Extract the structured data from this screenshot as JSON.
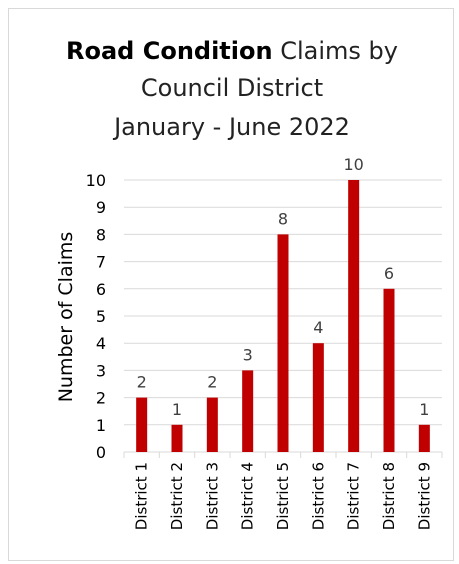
{
  "chart_data": {
    "type": "bar",
    "title_bold": "Road Condition",
    "title_rest": " Claims by",
    "title_line2": "Council District",
    "title_line3": "January - June 2022",
    "xlabel": "",
    "ylabel": "Number of Claims",
    "categories": [
      "District 1",
      "District 2",
      "District 3",
      "District 4",
      "District 5",
      "District 6",
      "District 7",
      "District 8",
      "District 9"
    ],
    "values": [
      2,
      1,
      2,
      3,
      8,
      4,
      10,
      6,
      1
    ],
    "ylim": [
      0,
      10
    ],
    "yticks": [
      "0",
      "1",
      "2",
      "3",
      "4",
      "5",
      "6",
      "7",
      "8",
      "9",
      "10"
    ],
    "data_labels": [
      "2",
      "1",
      "2",
      "3",
      "8",
      "4",
      "10",
      "6",
      "1"
    ],
    "bar_color": "#c00000",
    "grid": true,
    "legend": "none"
  }
}
